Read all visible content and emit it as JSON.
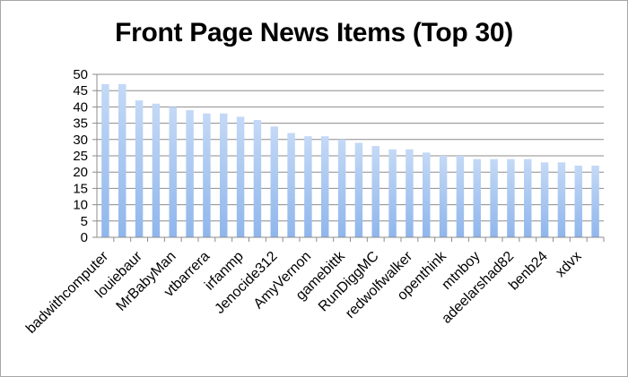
{
  "chart_data": {
    "type": "bar",
    "title": "Front Page News Items (Top 30)",
    "xlabel": "",
    "ylabel": "",
    "ylim": [
      0,
      50
    ],
    "yticks": [
      0,
      5,
      10,
      15,
      20,
      25,
      30,
      35,
      40,
      45,
      50
    ],
    "grid": true,
    "legend": "none",
    "bar_color": "#8fb6ec",
    "categories": [
      "badwithcomputer",
      "",
      "louiebaur",
      "",
      "MrBabyMan",
      "",
      "vtbarrera",
      "",
      "irfanmp",
      "",
      "Jenocide312",
      "",
      "AmyVernon",
      "",
      "gamebittk",
      "",
      "RunDiggMC",
      "",
      "redwolfwalker",
      "",
      "openthink",
      "",
      "mtnboy",
      "",
      "adeelarshad82",
      "",
      "benb24",
      "",
      "xdvx",
      ""
    ],
    "values": [
      47,
      47,
      42,
      41,
      40,
      39,
      38,
      38,
      37,
      36,
      34,
      32,
      31,
      31,
      30,
      29,
      28,
      27,
      27,
      26,
      25,
      25,
      24,
      24,
      24,
      24,
      23,
      23,
      22,
      22
    ]
  }
}
